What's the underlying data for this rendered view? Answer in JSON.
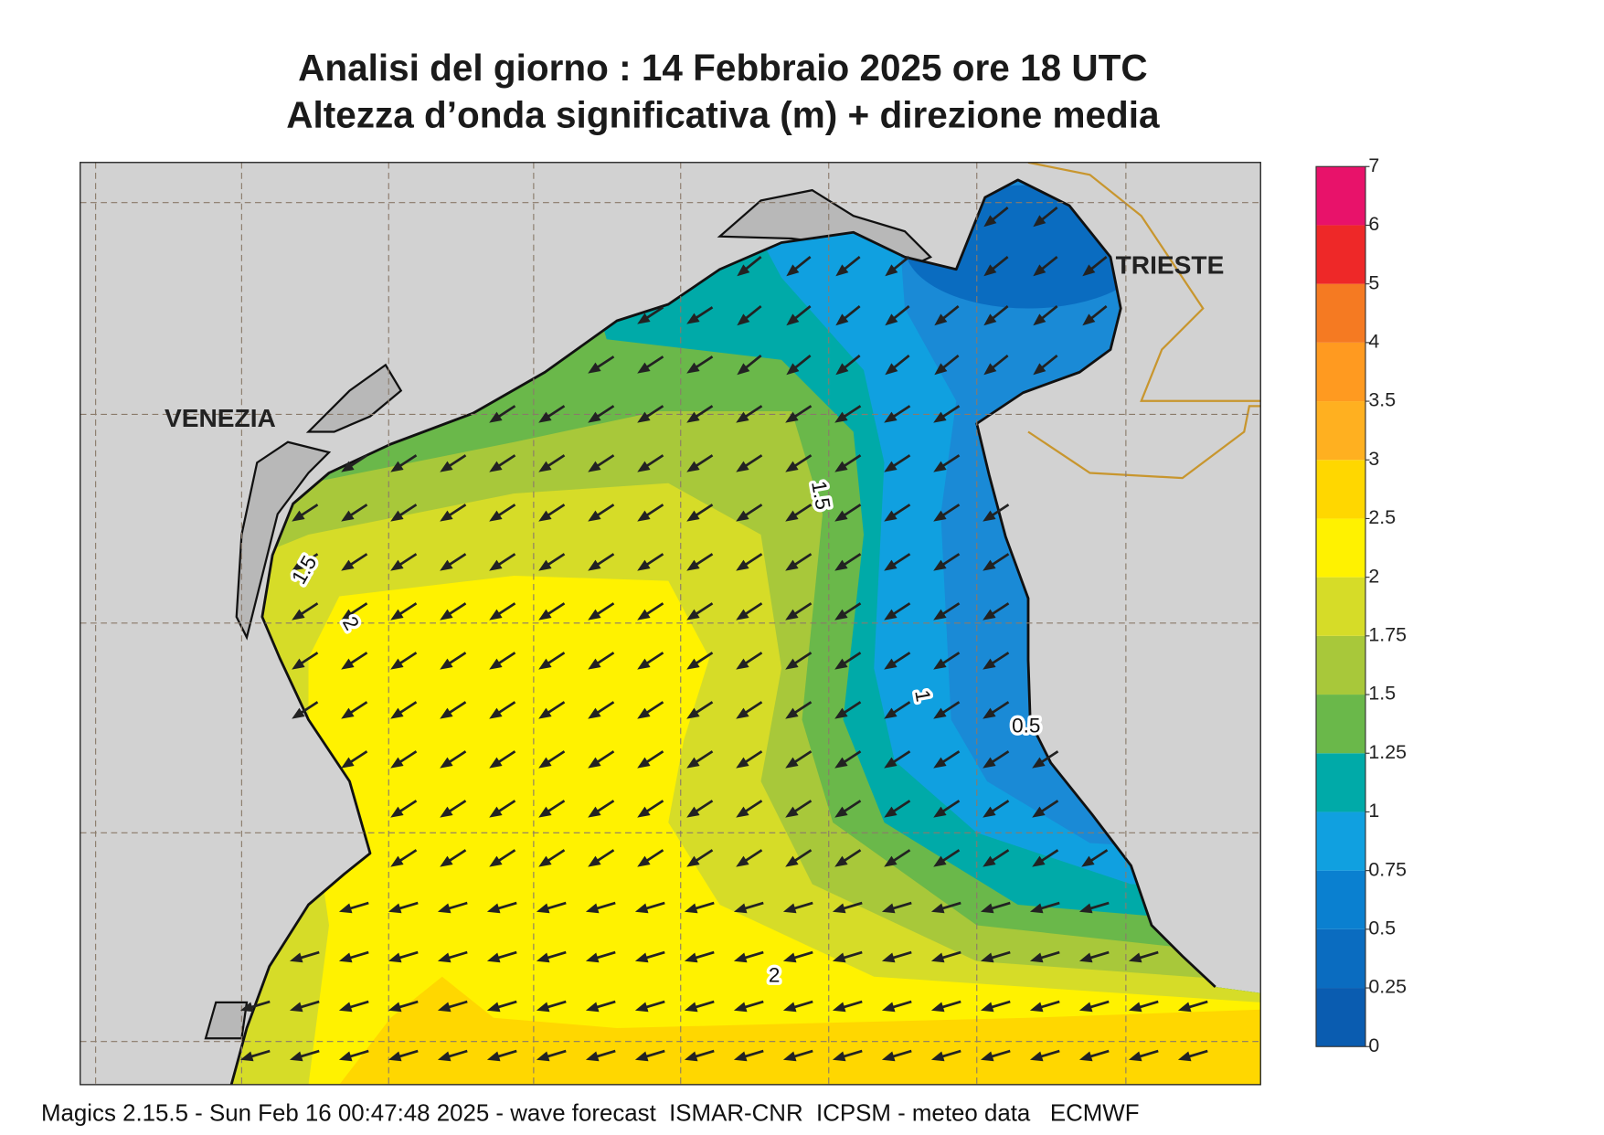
{
  "header": {
    "title": "Analisi del giorno :  14  Febbraio 2025   ore 18 UTC",
    "subtitle": "Altezza d’onda significativa (m) + direzione media"
  },
  "map": {
    "cities": [
      "VENEZIA",
      "TRIESTE"
    ],
    "contour_labels": [
      "1.5",
      "1.5",
      "2",
      "1",
      "0.5",
      "2"
    ]
  },
  "legend": {
    "levels": [
      0,
      0.25,
      0.5,
      0.75,
      1,
      1.25,
      1.5,
      1.75,
      2,
      2.5,
      3,
      3.5,
      4,
      5,
      6,
      7
    ],
    "colors": [
      "#0a5cb0",
      "#0a6cc0",
      "#0a80d0",
      "#10a0e0",
      "#00aaa8",
      "#6ab84a",
      "#a8c83a",
      "#d6dc28",
      "#fff200",
      "#ffd700",
      "#ffb020",
      "#ff9a20",
      "#f57a22",
      "#ee2828",
      "#e8126a"
    ]
  },
  "footer": "Magics 2.15.5 - Sun Feb 16 00:47:48 2025 - wave forecast  ISMAR-CNR  ICPSM - meteo data   ECMWF"
}
